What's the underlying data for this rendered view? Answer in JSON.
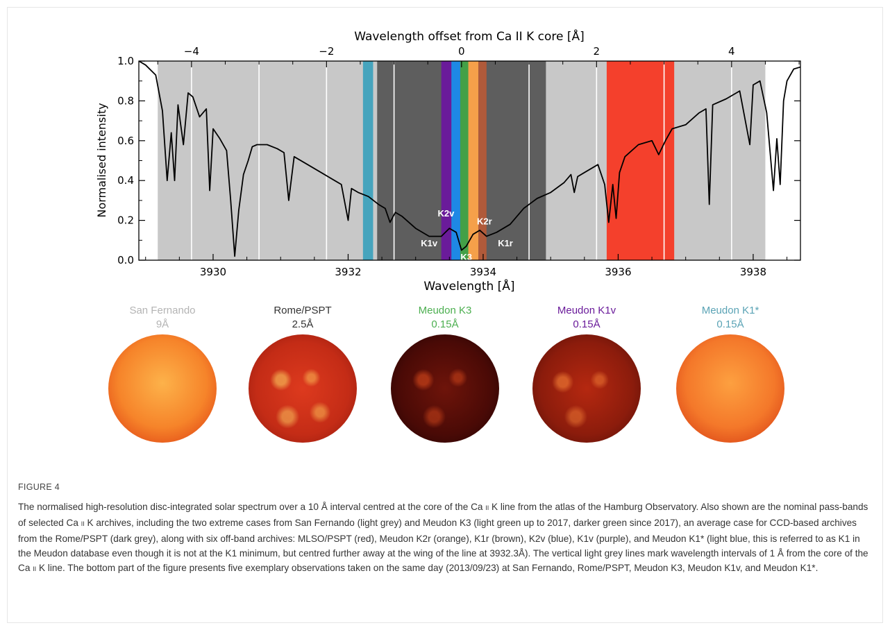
{
  "chart_data": {
    "type": "line",
    "xlabel": "Wavelength [Å]",
    "top_xlabel": "Wavelength offset from Ca II K core [Å]",
    "ylabel": "Normalised intensity",
    "xlim": [
      3928.9,
      3938.7
    ],
    "ylim": [
      0.0,
      1.0
    ],
    "line_core": 3933.68,
    "xticks": [
      3930,
      3932,
      3934,
      3936,
      3938
    ],
    "xtick_labels": [
      "3930",
      "3932",
      "3934",
      "3936",
      "3938"
    ],
    "top_xticks": [
      -4,
      -2,
      0,
      2,
      4
    ],
    "top_xtick_labels": [
      "−4",
      "−2",
      "0",
      "2",
      "4"
    ],
    "yticks": [
      0.0,
      0.2,
      0.4,
      0.6,
      0.8,
      1.0
    ],
    "ytick_labels": [
      "0.0",
      "0.2",
      "0.4",
      "0.6",
      "0.8",
      "1.0"
    ],
    "passbands": [
      {
        "from": 3929.18,
        "to": 3938.18,
        "color": "#c8c8c8"
      },
      {
        "from": 3932.43,
        "to": 3934.93,
        "color": "#5e5e5e"
      },
      {
        "from": 3932.22,
        "to": 3932.37,
        "color": "#46a4bd"
      },
      {
        "from": 3935.83,
        "to": 3936.83,
        "color": "#f4402c"
      },
      {
        "from": 3933.38,
        "to": 3933.53,
        "color": "#6a1b9a"
      },
      {
        "from": 3933.53,
        "to": 3933.68,
        "color": "#1e88e5"
      },
      {
        "from": 3933.66,
        "to": 3933.81,
        "color": "#43a047"
      },
      {
        "from": 3933.78,
        "to": 3933.93,
        "color": "#f5a04a"
      },
      {
        "from": 3933.93,
        "to": 3934.05,
        "color": "#b05a3a"
      }
    ],
    "interval_lines": [
      3929.68,
      3930.68,
      3931.68,
      3932.68,
      3934.68,
      3935.68,
      3936.68,
      3937.68
    ],
    "series": [
      {
        "x": [
          3928.9,
          3929.0,
          3929.15,
          3929.25,
          3929.32,
          3929.38,
          3929.43,
          3929.48,
          3929.56,
          3929.63,
          3929.7,
          3929.8,
          3929.9,
          3929.95,
          3930.0,
          3930.1,
          3930.2,
          3930.26,
          3930.32,
          3930.38,
          3930.45,
          3930.52,
          3930.58,
          3930.65,
          3930.8,
          3930.95,
          3931.05,
          3931.12,
          3931.2,
          3931.4,
          3931.6,
          3931.8,
          3931.9,
          3932.0,
          3932.05,
          3932.15,
          3932.3,
          3932.45,
          3932.55,
          3932.62,
          3932.7,
          3932.8,
          3933.0,
          3933.2,
          3933.38,
          3933.5,
          3933.6,
          3933.68,
          3933.75,
          3933.85,
          3933.95,
          3934.05,
          3934.2,
          3934.4,
          3934.6,
          3934.8,
          3935.0,
          3935.2,
          3935.3,
          3935.35,
          3935.4,
          3935.5,
          3935.7,
          3935.8,
          3935.86,
          3935.92,
          3935.97,
          3936.02,
          3936.1,
          3936.3,
          3936.5,
          3936.6,
          3936.7,
          3936.8,
          3937.0,
          3937.2,
          3937.3,
          3937.35,
          3937.4,
          3937.6,
          3937.8,
          3937.95,
          3938.0,
          3938.1,
          3938.2,
          3938.3,
          3938.35,
          3938.4,
          3938.45,
          3938.5,
          3938.6,
          3938.7
        ],
        "values": [
          1.0,
          0.98,
          0.93,
          0.75,
          0.4,
          0.64,
          0.4,
          0.78,
          0.58,
          0.84,
          0.82,
          0.72,
          0.76,
          0.35,
          0.66,
          0.61,
          0.55,
          0.3,
          0.02,
          0.25,
          0.43,
          0.5,
          0.57,
          0.58,
          0.58,
          0.56,
          0.54,
          0.3,
          0.52,
          0.48,
          0.44,
          0.4,
          0.38,
          0.2,
          0.36,
          0.34,
          0.32,
          0.28,
          0.26,
          0.19,
          0.24,
          0.22,
          0.16,
          0.12,
          0.12,
          0.16,
          0.14,
          0.05,
          0.07,
          0.13,
          0.15,
          0.12,
          0.14,
          0.18,
          0.26,
          0.31,
          0.34,
          0.39,
          0.43,
          0.34,
          0.42,
          0.44,
          0.48,
          0.38,
          0.19,
          0.38,
          0.21,
          0.44,
          0.52,
          0.58,
          0.6,
          0.53,
          0.6,
          0.66,
          0.68,
          0.74,
          0.76,
          0.28,
          0.78,
          0.81,
          0.85,
          0.58,
          0.88,
          0.9,
          0.74,
          0.35,
          0.61,
          0.38,
          0.8,
          0.9,
          0.96,
          0.97
        ]
      }
    ],
    "annotations": [
      {
        "text": "K2v",
        "x": 3933.45,
        "y": 0.22
      },
      {
        "text": "K2r",
        "x": 3934.02,
        "y": 0.18
      },
      {
        "text": "K1v",
        "x": 3933.2,
        "y": 0.07
      },
      {
        "text": "K1r",
        "x": 3934.33,
        "y": 0.07
      },
      {
        "text": "K3",
        "x": 3933.75,
        "y": 0.0
      }
    ]
  },
  "panels": [
    {
      "name": "San Fernando",
      "width": "9Å",
      "color": "#b4b4b4",
      "disk": "sanfernando"
    },
    {
      "name": "Rome/PSPT",
      "width": "2.5Å",
      "color": "#333333",
      "disk": "rome"
    },
    {
      "name": "Meudon K3",
      "width": "0.15Å",
      "color": "#4caf50",
      "disk": "k3"
    },
    {
      "name": "Meudon K1v",
      "width": "0.15Å",
      "color": "#6a1b9a",
      "disk": "k1v"
    },
    {
      "name": "Meudon K1*",
      "width": "0.15Å",
      "color": "#5aa3b5",
      "disk": "k1star"
    }
  ],
  "figure_label": "FIGURE 4",
  "caption": {
    "part1": "The normalised high-resolution disc-integrated solar spectrum over a 10 Å interval centred at the core of the Ca",
    "part2": "K line from the atlas of the Hamburg Observatory. Also shown are the nominal pass-bands of selected Ca",
    "part3": "K archives, including the two extreme cases from San Fernando (light grey) and Meudon K3 (light green up to 2017, darker green since 2017), an average case for CCD-based archives from the Rome/PSPT (dark grey), along with six off-band archives: MLSO/PSPT (red), Meudon K2r (orange), K1r (brown), K2v (blue), K1v (purple), and Meudon K1* (light blue, this is referred to as K1 in the Meudon database even though it is not at the K1 minimum, but centred further away at the wing of the line at 3932.3Å). The vertical light grey lines mark wavelength intervals of 1 Å from the core of the Ca",
    "part4": "K line. The bottom part of the figure presents five exemplary observations taken on the same day (2013/09/23) at San Fernando, Rome/PSPT, Meudon K3, Meudon K1v, and Meudon K1*.",
    "ion": "II"
  }
}
